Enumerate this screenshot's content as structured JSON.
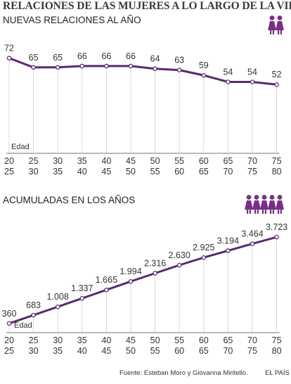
{
  "title": "RELACIONES DE LAS MUJERES A LO LARGO DE LA VIDA",
  "source": "Fuente: Esteban Moro y Giovanna Miritello.",
  "brand": "EL PAÍS",
  "accent_color": "#5b2a6e",
  "icon_color": "#7a2f86",
  "chart_data": [
    {
      "type": "line",
      "title": "NUEVAS RELACIONES AL AÑO",
      "icon": "woman-icon",
      "icon_count": 2,
      "axis_label": "Edad",
      "categories": [
        "20 25",
        "25 30",
        "30 35",
        "35 40",
        "40 45",
        "45 50",
        "50 55",
        "55 60",
        "60 65",
        "65 70",
        "70 75",
        "75 80"
      ],
      "category_lines": [
        [
          "20",
          "25"
        ],
        [
          "25",
          "30"
        ],
        [
          "30",
          "35"
        ],
        [
          "35",
          "40"
        ],
        [
          "40",
          "45"
        ],
        [
          "45",
          "50"
        ],
        [
          "50",
          "55"
        ],
        [
          "55",
          "60"
        ],
        [
          "60",
          "65"
        ],
        [
          "65",
          "70"
        ],
        [
          "70",
          "75"
        ],
        [
          "75",
          "80"
        ]
      ],
      "values": [
        72,
        65,
        65,
        66,
        66,
        66,
        64,
        63,
        59,
        54,
        54,
        52
      ],
      "value_labels": [
        "72",
        "65",
        "65",
        "66",
        "66",
        "66",
        "64",
        "63",
        "59",
        "54",
        "54",
        "52"
      ],
      "grid": true,
      "ylim": [
        0,
        75
      ]
    },
    {
      "type": "line",
      "title": "ACUMULADAS EN LOS AÑOS",
      "icon": "woman-icon",
      "icon_count": 5,
      "axis_label": "Edad",
      "categories": [
        "20 25",
        "25 30",
        "30 35",
        "35 40",
        "40 45",
        "45 50",
        "50 55",
        "55 60",
        "60 65",
        "65 70",
        "70 75",
        "75 80"
      ],
      "category_lines": [
        [
          "20",
          "25"
        ],
        [
          "25",
          "30"
        ],
        [
          "30",
          "35"
        ],
        [
          "35",
          "40"
        ],
        [
          "40",
          "45"
        ],
        [
          "45",
          "50"
        ],
        [
          "50",
          "55"
        ],
        [
          "55",
          "60"
        ],
        [
          "60",
          "65"
        ],
        [
          "65",
          "70"
        ],
        [
          "70",
          "75"
        ],
        [
          "75",
          "80"
        ]
      ],
      "values": [
        360,
        683,
        1008,
        1337,
        1665,
        1994,
        2316,
        2630,
        2925,
        3194,
        3464,
        3723
      ],
      "value_labels": [
        "360",
        "683",
        "1.008",
        "1.337",
        "1.665",
        "1.994",
        "2.316",
        "2.630",
        "2.925",
        "3.194",
        "3.464",
        "3.723"
      ],
      "grid": true,
      "ylim": [
        0,
        4000
      ]
    }
  ]
}
